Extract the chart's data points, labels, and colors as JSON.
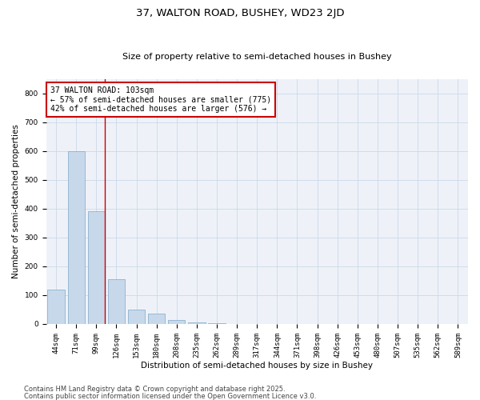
{
  "title_line1": "37, WALTON ROAD, BUSHEY, WD23 2JD",
  "title_line2": "Size of property relative to semi-detached houses in Bushey",
  "xlabel": "Distribution of semi-detached houses by size in Bushey",
  "ylabel": "Number of semi-detached properties",
  "categories": [
    "44sqm",
    "71sqm",
    "99sqm",
    "126sqm",
    "153sqm",
    "180sqm",
    "208sqm",
    "235sqm",
    "262sqm",
    "289sqm",
    "317sqm",
    "344sqm",
    "371sqm",
    "398sqm",
    "426sqm",
    "453sqm",
    "480sqm",
    "507sqm",
    "535sqm",
    "562sqm",
    "589sqm"
  ],
  "values": [
    120,
    600,
    390,
    155,
    50,
    35,
    15,
    5,
    2,
    0,
    0,
    0,
    0,
    0,
    0,
    0,
    0,
    0,
    0,
    0,
    0
  ],
  "bar_color": "#c8d8eb",
  "bar_edge_color": "#7aaac8",
  "vline_x_index": 2.42,
  "vline_color": "#cc0000",
  "annotation_text": "37 WALTON ROAD: 103sqm\n← 57% of semi-detached houses are smaller (775)\n42% of semi-detached houses are larger (576) →",
  "annotation_box_color": "#ffffff",
  "annotation_box_edge_color": "#cc0000",
  "ylim": [
    0,
    850
  ],
  "yticks": [
    0,
    100,
    200,
    300,
    400,
    500,
    600,
    700,
    800
  ],
  "grid_color": "#ccd8e8",
  "background_color": "#eef2f8",
  "footer_line1": "Contains HM Land Registry data © Crown copyright and database right 2025.",
  "footer_line2": "Contains public sector information licensed under the Open Government Licence v3.0.",
  "title_fontsize": 9.5,
  "subtitle_fontsize": 8,
  "axis_label_fontsize": 7.5,
  "tick_fontsize": 6.5,
  "annotation_fontsize": 7,
  "footer_fontsize": 6
}
